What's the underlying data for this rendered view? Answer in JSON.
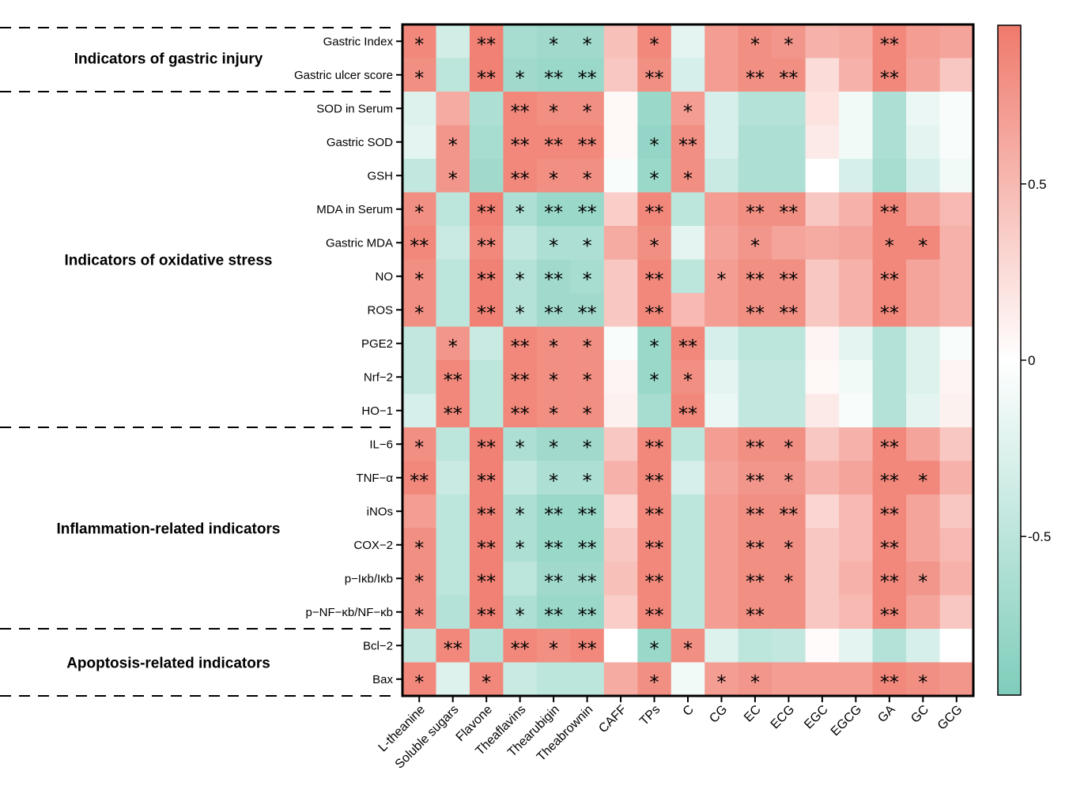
{
  "chart_data": {
    "type": "heatmap",
    "title": "",
    "columns": [
      "L-theanine",
      "Soluble sugars",
      "Flavone",
      "Theaflavins",
      "Thearubigin",
      "Theabrownin",
      "CAFF",
      "TPs",
      "C",
      "CG",
      "EC",
      "ECG",
      "EGC",
      "EGCG",
      "GA",
      "GC",
      "GCG"
    ],
    "rows": [
      "Gastric Index",
      "Gastric ulcer score",
      "SOD in Serum",
      "Gastric SOD",
      "GSH",
      "MDA in Serum",
      "Gastric MDA",
      "NO",
      "ROS",
      "PGE2",
      "Nrf−2",
      "HO−1",
      "IL−6",
      "TNF−α",
      "iNOs",
      "COX−2",
      "p−Iκb/Iκb",
      "p−NF−κb/NF−κb",
      "Bcl−2",
      "Bax"
    ],
    "groups": [
      {
        "label": "Indicators of gastric injury",
        "start": 0,
        "end": 1
      },
      {
        "label": "Indicators of oxidative stress",
        "start": 2,
        "end": 11
      },
      {
        "label": "Inflammation-related indicators",
        "start": 12,
        "end": 17
      },
      {
        "label": "Apoptosis-related indicators",
        "start": 18,
        "end": 19
      }
    ],
    "values": [
      [
        0.85,
        -0.35,
        0.9,
        -0.65,
        -0.7,
        -0.7,
        0.45,
        0.85,
        -0.2,
        0.7,
        0.8,
        0.75,
        0.55,
        0.6,
        0.85,
        0.7,
        0.65
      ],
      [
        0.8,
        -0.5,
        0.9,
        -0.7,
        -0.75,
        -0.75,
        0.4,
        0.8,
        -0.3,
        0.7,
        0.8,
        0.8,
        0.25,
        0.55,
        0.85,
        0.65,
        0.4
      ],
      [
        -0.25,
        0.6,
        -0.6,
        0.85,
        0.8,
        0.8,
        0.05,
        -0.75,
        0.7,
        -0.3,
        -0.55,
        -0.55,
        0.2,
        -0.1,
        -0.6,
        -0.15,
        -0.05
      ],
      [
        -0.2,
        0.75,
        -0.65,
        0.85,
        0.85,
        0.85,
        0.05,
        -0.8,
        0.8,
        -0.3,
        -0.6,
        -0.6,
        0.15,
        -0.1,
        -0.6,
        -0.2,
        -0.05
      ],
      [
        -0.45,
        0.75,
        -0.7,
        0.85,
        0.8,
        0.8,
        -0.05,
        -0.75,
        0.8,
        -0.4,
        -0.6,
        -0.6,
        0.0,
        -0.3,
        -0.65,
        -0.3,
        -0.1
      ],
      [
        0.8,
        -0.5,
        0.9,
        -0.6,
        -0.75,
        -0.75,
        0.35,
        0.85,
        -0.5,
        0.7,
        0.8,
        0.8,
        0.4,
        0.55,
        0.85,
        0.65,
        0.5
      ],
      [
        0.85,
        -0.4,
        0.85,
        -0.45,
        -0.6,
        -0.6,
        0.6,
        0.8,
        -0.2,
        0.65,
        0.75,
        0.65,
        0.6,
        0.65,
        0.85,
        0.85,
        0.55
      ],
      [
        0.8,
        -0.5,
        0.9,
        -0.55,
        -0.7,
        -0.65,
        0.4,
        0.85,
        -0.5,
        0.7,
        0.8,
        0.8,
        0.4,
        0.55,
        0.85,
        0.65,
        0.55
      ],
      [
        0.8,
        -0.5,
        0.9,
        -0.55,
        -0.7,
        -0.7,
        0.4,
        0.85,
        0.5,
        0.7,
        0.8,
        0.8,
        0.4,
        0.55,
        0.85,
        0.65,
        0.55
      ],
      [
        -0.45,
        0.75,
        -0.4,
        0.85,
        0.8,
        0.8,
        -0.05,
        -0.75,
        0.85,
        -0.3,
        -0.5,
        -0.5,
        0.08,
        -0.2,
        -0.55,
        -0.25,
        -0.05
      ],
      [
        -0.45,
        0.85,
        -0.5,
        0.85,
        0.8,
        0.8,
        0.08,
        -0.75,
        0.8,
        -0.2,
        -0.45,
        -0.45,
        0.05,
        -0.1,
        -0.55,
        -0.25,
        0.08
      ],
      [
        -0.3,
        0.85,
        -0.5,
        0.85,
        0.8,
        0.8,
        0.1,
        -0.65,
        0.85,
        -0.15,
        -0.45,
        -0.45,
        0.15,
        -0.05,
        -0.55,
        -0.2,
        0.1
      ],
      [
        0.8,
        -0.5,
        0.9,
        -0.6,
        -0.7,
        -0.7,
        0.4,
        0.85,
        -0.5,
        0.7,
        0.8,
        0.8,
        0.4,
        0.55,
        0.85,
        0.65,
        0.4
      ],
      [
        0.85,
        -0.4,
        0.9,
        -0.45,
        -0.6,
        -0.6,
        0.55,
        0.85,
        -0.3,
        0.65,
        0.75,
        0.75,
        0.55,
        0.65,
        0.85,
        0.85,
        0.55
      ],
      [
        0.7,
        -0.5,
        0.9,
        -0.6,
        -0.75,
        -0.75,
        0.3,
        0.85,
        -0.5,
        0.7,
        0.8,
        0.8,
        0.3,
        0.5,
        0.85,
        0.65,
        0.4
      ],
      [
        0.8,
        -0.5,
        0.9,
        -0.6,
        -0.75,
        -0.75,
        0.4,
        0.85,
        -0.5,
        0.7,
        0.8,
        0.8,
        0.4,
        0.5,
        0.85,
        0.65,
        0.5
      ],
      [
        0.8,
        -0.5,
        0.9,
        -0.5,
        -0.7,
        -0.7,
        0.45,
        0.85,
        -0.5,
        0.7,
        0.8,
        0.8,
        0.4,
        0.55,
        0.85,
        0.75,
        0.55
      ],
      [
        0.8,
        -0.55,
        0.9,
        -0.6,
        -0.75,
        -0.75,
        0.35,
        0.85,
        -0.5,
        0.7,
        0.8,
        0.8,
        0.4,
        0.5,
        0.85,
        0.65,
        0.4
      ],
      [
        -0.45,
        0.85,
        -0.55,
        0.85,
        0.8,
        0.85,
        0.0,
        -0.75,
        0.8,
        -0.25,
        -0.5,
        -0.45,
        0.03,
        -0.2,
        -0.55,
        -0.3,
        0.0
      ],
      [
        0.85,
        -0.25,
        0.85,
        -0.4,
        -0.5,
        -0.5,
        0.6,
        0.8,
        -0.1,
        0.7,
        0.75,
        0.7,
        0.7,
        0.7,
        0.85,
        0.8,
        0.75
      ]
    ],
    "significance": [
      [
        "*",
        "",
        "**",
        "",
        "*",
        "*",
        "",
        "*",
        "",
        "",
        "*",
        "*",
        "",
        "",
        "**",
        "",
        ""
      ],
      [
        "*",
        "",
        "**",
        "*",
        "**",
        "**",
        "",
        "**",
        "",
        "",
        "**",
        "**",
        "",
        "",
        "**",
        "",
        ""
      ],
      [
        "",
        "",
        "",
        "**",
        "*",
        "*",
        "",
        "",
        "*",
        "",
        "",
        "",
        "",
        "",
        "",
        "",
        ""
      ],
      [
        "",
        "*",
        "",
        "**",
        "**",
        "**",
        "",
        "*",
        "**",
        "",
        "",
        "",
        "",
        "",
        "",
        "",
        ""
      ],
      [
        "",
        "*",
        "",
        "**",
        "*",
        "*",
        "",
        "*",
        "*",
        "",
        "",
        "",
        "",
        "",
        "",
        "",
        ""
      ],
      [
        "*",
        "",
        "**",
        "*",
        "**",
        "**",
        "",
        "**",
        "",
        "",
        "**",
        "**",
        "",
        "",
        "**",
        "",
        ""
      ],
      [
        "**",
        "",
        "**",
        "",
        "*",
        "*",
        "",
        "*",
        "",
        "",
        "*",
        "",
        "",
        "",
        "*",
        "*",
        ""
      ],
      [
        "*",
        "",
        "**",
        "*",
        "**",
        "*",
        "",
        "**",
        "",
        "*",
        "**",
        "**",
        "",
        "",
        "**",
        "",
        ""
      ],
      [
        "*",
        "",
        "**",
        "*",
        "**",
        "**",
        "",
        "**",
        "",
        "",
        "**",
        "**",
        "",
        "",
        "**",
        "",
        ""
      ],
      [
        "",
        "*",
        "",
        "**",
        "*",
        "*",
        "",
        "*",
        "**",
        "",
        "",
        "",
        "",
        "",
        "",
        "",
        ""
      ],
      [
        "",
        "**",
        "",
        "**",
        "*",
        "*",
        "",
        "*",
        "*",
        "",
        "",
        "",
        "",
        "",
        "",
        "",
        ""
      ],
      [
        "",
        "**",
        "",
        "**",
        "*",
        "*",
        "",
        "",
        "**",
        "",
        "",
        "",
        "",
        "",
        "",
        "",
        ""
      ],
      [
        "*",
        "",
        "**",
        "*",
        "*",
        "*",
        "",
        "**",
        "",
        "",
        "**",
        "*",
        "",
        "",
        "**",
        "",
        ""
      ],
      [
        "**",
        "",
        "**",
        "",
        "*",
        "*",
        "",
        "**",
        "",
        "",
        "**",
        "*",
        "",
        "",
        "**",
        "*",
        ""
      ],
      [
        "",
        "",
        "**",
        "*",
        "**",
        "**",
        "",
        "**",
        "",
        "",
        "**",
        "**",
        "",
        "",
        "**",
        "",
        ""
      ],
      [
        "*",
        "",
        "**",
        "*",
        "**",
        "**",
        "",
        "**",
        "",
        "",
        "**",
        "*",
        "",
        "",
        "**",
        "",
        ""
      ],
      [
        "*",
        "",
        "**",
        "",
        "**",
        "**",
        "",
        "**",
        "",
        "",
        "**",
        "*",
        "",
        "",
        "**",
        "*",
        ""
      ],
      [
        "*",
        "",
        "**",
        "*",
        "**",
        "**",
        "",
        "**",
        "",
        "",
        "**",
        "",
        "",
        "",
        "**",
        "",
        ""
      ],
      [
        "",
        "**",
        "",
        "**",
        "*",
        "**",
        "",
        "*",
        "*",
        "",
        "",
        "",
        "",
        "",
        "",
        "",
        ""
      ],
      [
        "*",
        "",
        "*",
        "",
        "",
        "",
        "",
        "*",
        "",
        "*",
        "*",
        "",
        "",
        "",
        "**",
        "*",
        ""
      ]
    ],
    "color_scale": {
      "min": -0.95,
      "max": 0.95,
      "ticks": [
        "0.5",
        "0",
        "-0.5"
      ],
      "tick_values": [
        0.5,
        0,
        -0.5
      ],
      "low_color": "#7fcdbb",
      "mid_color": "#ffffff",
      "high_color": "#ef7a6c"
    }
  }
}
